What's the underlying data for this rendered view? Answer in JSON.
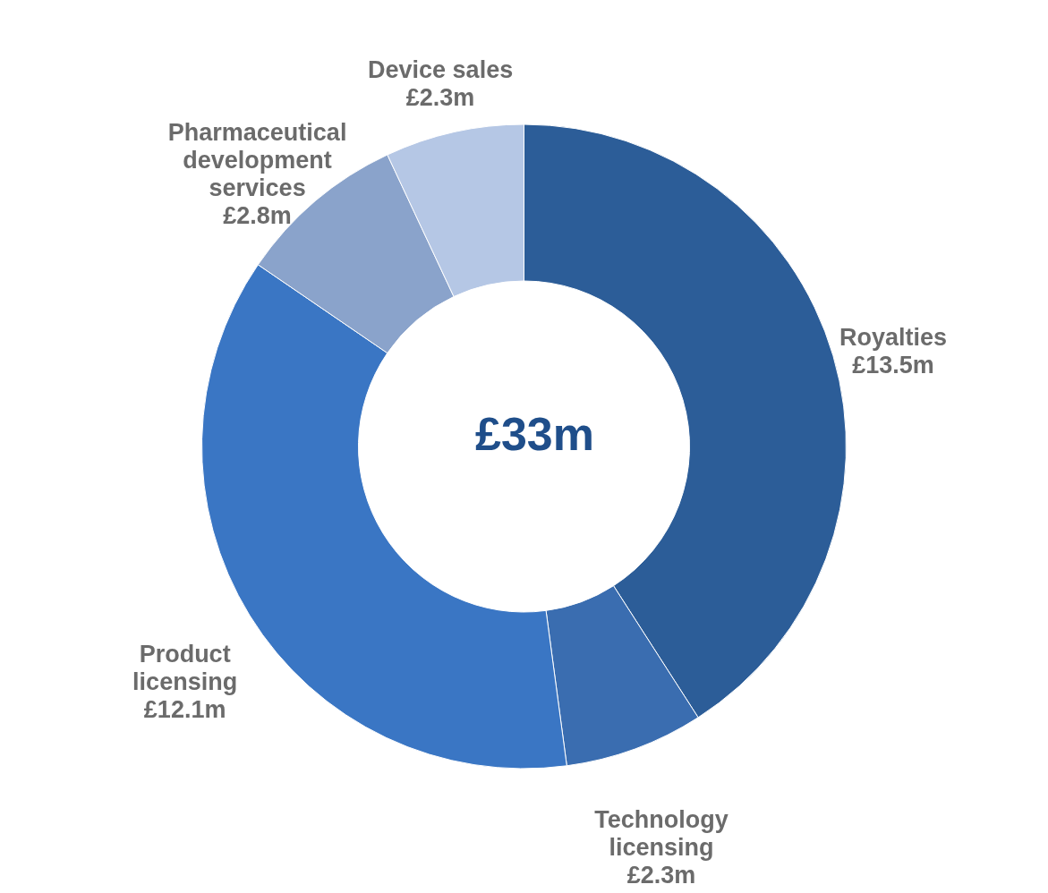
{
  "chart_data": {
    "type": "donut",
    "categories": [
      "Royalties",
      "Technology licensing",
      "Product licensing",
      "Pharmaceutical development services",
      "Device sales"
    ],
    "values": [
      13.5,
      2.3,
      12.1,
      2.8,
      2.3
    ],
    "colors": [
      "#2c5d98",
      "#3a6db0",
      "#3a76c4",
      "#8aa3cb",
      "#b5c7e5"
    ],
    "value_labels": [
      "£13.5m",
      "£2.3m",
      "£12.1m",
      "£2.8m",
      "£2.3m"
    ],
    "annotations": [
      "£33m"
    ]
  }
}
